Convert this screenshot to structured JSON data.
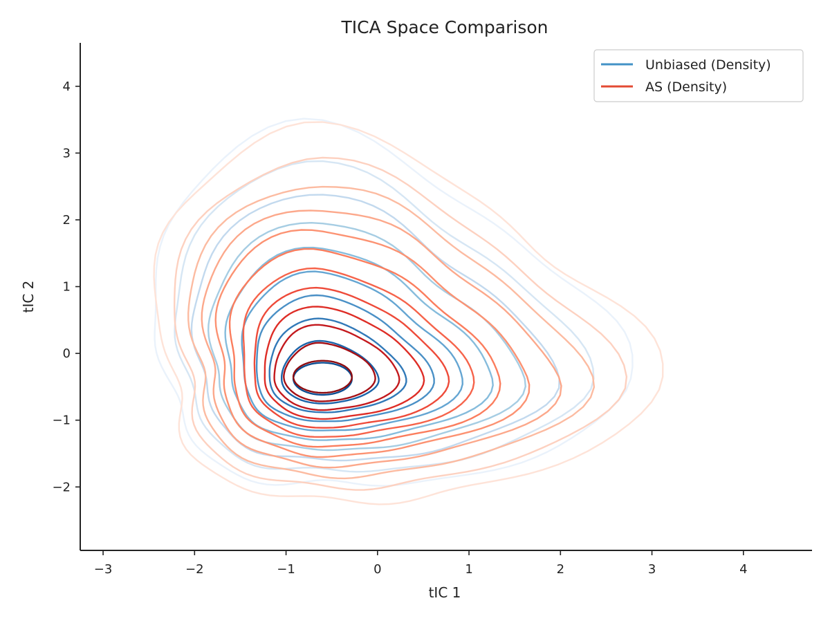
{
  "chart_data": {
    "type": "contour",
    "title": "TICA Space Comparison",
    "xlabel": "tIC 1",
    "ylabel": "tIC 2",
    "xlim": [
      -3.25,
      4.75
    ],
    "ylim": [
      -2.95,
      4.65
    ],
    "xticks": [
      -3,
      -2,
      -1,
      0,
      1,
      2,
      3,
      4
    ],
    "yticks": [
      -2,
      -1,
      0,
      1,
      2,
      3,
      4
    ],
    "xtick_labels": [
      "−3",
      "−2",
      "−1",
      "0",
      "1",
      "2",
      "3",
      "4"
    ],
    "ytick_labels": [
      "−2",
      "−1",
      "0",
      "1",
      "2",
      "3",
      "4"
    ],
    "legend_position": "top-right",
    "series": [
      {
        "name": "Unbiased (Density)",
        "legend_color": "#4292c6",
        "levels": 10,
        "colors": [
          "#eaf2fb",
          "#d6e6f4",
          "#c2d9ee",
          "#a6cde3",
          "#86bcdc",
          "#64a5d2",
          "#4a90c6",
          "#3179b8",
          "#1b64a9",
          "#0b4d92"
        ],
        "peak": [
          -0.6,
          -0.38
        ],
        "outer_extent": {
          "xmin": -2.55,
          "xmax": 2.85,
          "ymin": -1.9,
          "ymax": 2.95
        }
      },
      {
        "name": "AS (Density)",
        "legend_color": "#e34a33",
        "levels": 12,
        "colors": [
          "#fee3d8",
          "#fdd1c0",
          "#fcbba1",
          "#fca88b",
          "#fc9272",
          "#fb7d5d",
          "#f6634a",
          "#ee4a39",
          "#de2d26",
          "#c3191d",
          "#a50f15",
          "#8e0c10"
        ],
        "peak": [
          -0.6,
          -0.35
        ],
        "outer_extent": {
          "xmin": -2.5,
          "xmax": 3.1,
          "ymin": -2.15,
          "ymax": 2.95
        }
      }
    ]
  }
}
